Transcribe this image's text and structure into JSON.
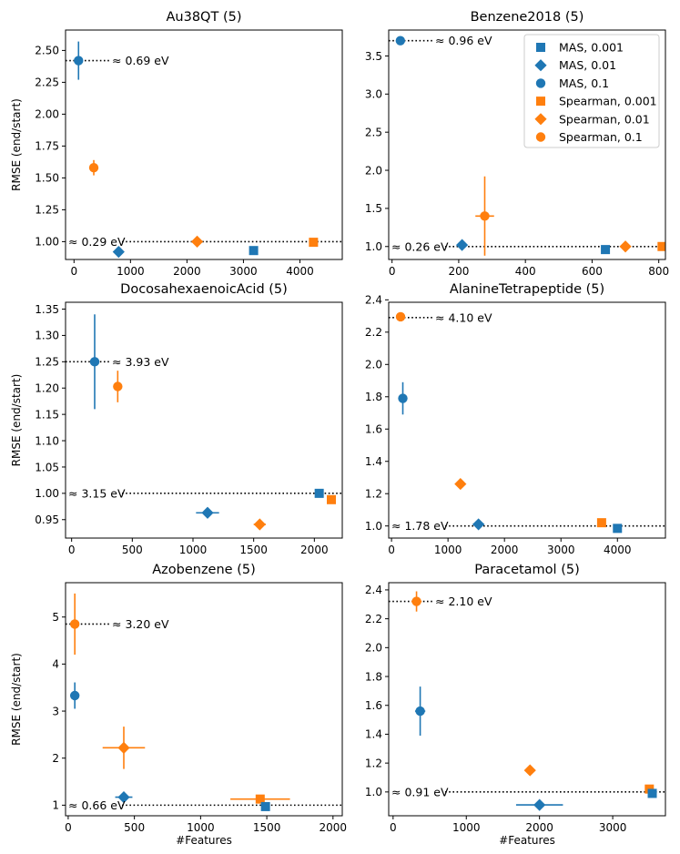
{
  "figure": {
    "shared_xlabel": "#Features",
    "shared_ylabel": "RMSE (end/start)"
  },
  "colors": {
    "MAS": "#1f77b4",
    "Spearman": "#ff7f0e"
  },
  "legend_entries": [
    {
      "label": "MAS, 0.001",
      "method": "MAS",
      "marker": "square"
    },
    {
      "label": "MAS, 0.01",
      "method": "MAS",
      "marker": "diamond"
    },
    {
      "label": "MAS, 0.1",
      "method": "MAS",
      "marker": "circle"
    },
    {
      "label": "Spearman, 0.001",
      "method": "Spearman",
      "marker": "square"
    },
    {
      "label": "Spearman, 0.01",
      "method": "Spearman",
      "marker": "diamond"
    },
    {
      "label": "Spearman, 0.1",
      "method": "Spearman",
      "marker": "circle"
    }
  ],
  "chart_data": [
    {
      "type": "scatter",
      "title": "Au38QT (5)",
      "xlabel": "",
      "ylabel": "RMSE (end/start)",
      "xlim": [
        -150,
        4750
      ],
      "ylim": [
        0.86,
        2.66
      ],
      "xticks": [
        0,
        1000,
        2000,
        3000,
        4000
      ],
      "yticks": [
        1.0,
        1.25,
        1.5,
        1.75,
        2.0,
        2.25,
        2.5
      ],
      "xtick_labels": [
        "0",
        "1000",
        "2000",
        "3000",
        "4000"
      ],
      "ytick_labels": [
        "1.00",
        "1.25",
        "1.50",
        "1.75",
        "2.00",
        "2.25",
        "2.50"
      ],
      "refs": [
        {
          "y": 2.42,
          "label": "≈ 0.69 eV",
          "side": "left"
        },
        {
          "y": 1.0,
          "label": "≈ 0.29 eV",
          "side": "full"
        }
      ],
      "points": [
        {
          "series": "MAS, 0.1",
          "method": "MAS",
          "marker": "circle",
          "x": 80,
          "y": 2.42,
          "yerr": 0.15,
          "xerr": 0
        },
        {
          "series": "MAS, 0.01",
          "method": "MAS",
          "marker": "diamond",
          "x": 790,
          "y": 0.92,
          "yerr": 0,
          "xerr": 0
        },
        {
          "series": "MAS, 0.001",
          "method": "MAS",
          "marker": "square",
          "x": 3180,
          "y": 0.93,
          "yerr": 0,
          "xerr": 0
        },
        {
          "series": "Spearman, 0.1",
          "method": "Spearman",
          "marker": "circle",
          "x": 350,
          "y": 1.58,
          "yerr": 0.06,
          "xerr": 0
        },
        {
          "series": "Spearman, 0.01",
          "method": "Spearman",
          "marker": "diamond",
          "x": 2180,
          "y": 1.0,
          "yerr": 0,
          "xerr": 0
        },
        {
          "series": "Spearman, 0.001",
          "method": "Spearman",
          "marker": "square",
          "x": 4240,
          "y": 0.995,
          "yerr": 0,
          "xerr": 30
        }
      ]
    },
    {
      "type": "scatter",
      "title": "Benzene2018 (5)",
      "xlabel": "",
      "ylabel": "",
      "xlim": [
        -10,
        820
      ],
      "ylim": [
        0.83,
        3.84
      ],
      "xticks": [
        0,
        200,
        400,
        600,
        800
      ],
      "yticks": [
        1.0,
        1.5,
        2.0,
        2.5,
        3.0,
        3.5
      ],
      "xtick_labels": [
        "0",
        "200",
        "400",
        "600",
        "800"
      ],
      "ytick_labels": [
        "1.0",
        "1.5",
        "2.0",
        "2.5",
        "3.0",
        "3.5"
      ],
      "refs": [
        {
          "y": 3.7,
          "label": "≈ 0.96 eV",
          "side": "left"
        },
        {
          "y": 1.0,
          "label": "≈ 0.26 eV",
          "side": "full"
        }
      ],
      "legend": "top-right",
      "points": [
        {
          "series": "MAS, 0.1",
          "method": "MAS",
          "marker": "circle",
          "x": 25,
          "y": 3.7,
          "yerr": 0,
          "xerr": 0
        },
        {
          "series": "MAS, 0.01",
          "method": "MAS",
          "marker": "diamond",
          "x": 210,
          "y": 1.02,
          "yerr": 0,
          "xerr": 0
        },
        {
          "series": "MAS, 0.001",
          "method": "MAS",
          "marker": "square",
          "x": 640,
          "y": 0.96,
          "yerr": 0,
          "xerr": 6
        },
        {
          "series": "Spearman, 0.1",
          "method": "Spearman",
          "marker": "circle",
          "x": 278,
          "y": 1.4,
          "yerr": 0.52,
          "xerr": 28
        },
        {
          "series": "Spearman, 0.01",
          "method": "Spearman",
          "marker": "diamond",
          "x": 700,
          "y": 1.0,
          "yerr": 0,
          "xerr": 0
        },
        {
          "series": "Spearman, 0.001",
          "method": "Spearman",
          "marker": "square",
          "x": 810,
          "y": 1.0,
          "yerr": 0,
          "xerr": 0
        }
      ]
    },
    {
      "type": "scatter",
      "title": "DocosahexaenoicAcid (5)",
      "xlabel": "",
      "ylabel": "RMSE (end/start)",
      "xlim": [
        -50,
        2230
      ],
      "ylim": [
        0.915,
        1.363
      ],
      "xticks": [
        0,
        500,
        1000,
        1500,
        2000
      ],
      "yticks": [
        0.95,
        1.0,
        1.05,
        1.1,
        1.15,
        1.2,
        1.25,
        1.3,
        1.35
      ],
      "xtick_labels": [
        "0",
        "500",
        "1000",
        "1500",
        "2000"
      ],
      "ytick_labels": [
        "0.95",
        "1.00",
        "1.05",
        "1.10",
        "1.15",
        "1.20",
        "1.25",
        "1.30",
        "1.35"
      ],
      "refs": [
        {
          "y": 1.25,
          "label": "≈ 3.93 eV",
          "side": "left"
        },
        {
          "y": 1.0,
          "label": "≈ 3.15 eV",
          "side": "full"
        }
      ],
      "points": [
        {
          "series": "MAS, 0.1",
          "method": "MAS",
          "marker": "circle",
          "x": 190,
          "y": 1.25,
          "yerr": 0.09,
          "xerr": 0
        },
        {
          "series": "MAS, 0.01",
          "method": "MAS",
          "marker": "diamond",
          "x": 1120,
          "y": 0.963,
          "yerr": 0,
          "xerr": 95
        },
        {
          "series": "MAS, 0.001",
          "method": "MAS",
          "marker": "square",
          "x": 2040,
          "y": 1.0,
          "yerr": 0,
          "xerr": 25
        },
        {
          "series": "Spearman, 0.1",
          "method": "Spearman",
          "marker": "circle",
          "x": 380,
          "y": 1.203,
          "yerr": 0.03,
          "xerr": 0
        },
        {
          "series": "Spearman, 0.01",
          "method": "Spearman",
          "marker": "diamond",
          "x": 1550,
          "y": 0.941,
          "yerr": 0,
          "xerr": 50
        },
        {
          "series": "Spearman, 0.001",
          "method": "Spearman",
          "marker": "square",
          "x": 2140,
          "y": 0.988,
          "yerr": 0,
          "xerr": 0
        }
      ]
    },
    {
      "type": "scatter",
      "title": "AlanineTetrapeptide (5)",
      "xlabel": "",
      "ylabel": "",
      "xlim": [
        -50,
        4850
      ],
      "ylim": [
        0.925,
        2.385
      ],
      "xticks": [
        0,
        1000,
        2000,
        3000,
        4000
      ],
      "yticks": [
        1.0,
        1.2,
        1.4,
        1.6,
        1.8,
        2.0,
        2.2,
        2.4
      ],
      "xtick_labels": [
        "0",
        "1000",
        "2000",
        "3000",
        "4000"
      ],
      "ytick_labels": [
        "1.0",
        "1.2",
        "1.4",
        "1.6",
        "1.8",
        "2.0",
        "2.2",
        "2.4"
      ],
      "refs": [
        {
          "y": 2.29,
          "label": "≈ 4.10 eV",
          "side": "left"
        },
        {
          "y": 1.0,
          "label": "≈ 1.78 eV",
          "side": "full"
        }
      ],
      "points": [
        {
          "series": "Spearman, 0.1",
          "method": "Spearman",
          "marker": "circle",
          "x": 160,
          "y": 2.295,
          "yerr": 0,
          "xerr": 0
        },
        {
          "series": "MAS, 0.1",
          "method": "MAS",
          "marker": "circle",
          "x": 200,
          "y": 1.79,
          "yerr": 0.1,
          "xerr": 0
        },
        {
          "series": "Spearman, 0.01",
          "method": "Spearman",
          "marker": "diamond",
          "x": 1220,
          "y": 1.26,
          "yerr": 0,
          "xerr": 0
        },
        {
          "series": "MAS, 0.01",
          "method": "MAS",
          "marker": "diamond",
          "x": 1540,
          "y": 1.01,
          "yerr": 0,
          "xerr": 100
        },
        {
          "series": "Spearman, 0.001",
          "method": "Spearman",
          "marker": "square",
          "x": 3720,
          "y": 1.02,
          "yerr": 0,
          "xerr": 0
        },
        {
          "series": "MAS, 0.001",
          "method": "MAS",
          "marker": "square",
          "x": 4000,
          "y": 0.985,
          "yerr": 0,
          "xerr": 60
        }
      ]
    },
    {
      "type": "scatter",
      "title": "Azobenzene (5)",
      "xlabel": "#Features",
      "ylabel": "RMSE (end/start)",
      "xlim": [
        -20,
        2070
      ],
      "ylim": [
        0.775,
        5.73
      ],
      "xticks": [
        0,
        500,
        1000,
        1500,
        2000
      ],
      "yticks": [
        1,
        2,
        3,
        4,
        5
      ],
      "xtick_labels": [
        "0",
        "500",
        "1000",
        "1500",
        "2000"
      ],
      "ytick_labels": [
        "1",
        "2",
        "3",
        "4",
        "5"
      ],
      "refs": [
        {
          "y": 4.85,
          "label": "≈ 3.20 eV",
          "side": "left"
        },
        {
          "y": 1.0,
          "label": "≈ 0.66 eV",
          "side": "full"
        }
      ],
      "points": [
        {
          "series": "Spearman, 0.1",
          "method": "Spearman",
          "marker": "circle",
          "x": 50,
          "y": 4.85,
          "yerr": 0.65,
          "xerr": 20
        },
        {
          "series": "MAS, 0.1",
          "method": "MAS",
          "marker": "circle",
          "x": 50,
          "y": 3.33,
          "yerr": 0.28,
          "xerr": 0
        },
        {
          "series": "Spearman, 0.01",
          "method": "Spearman",
          "marker": "diamond",
          "x": 420,
          "y": 2.22,
          "yerr": 0.45,
          "xerr": 160
        },
        {
          "series": "MAS, 0.01",
          "method": "MAS",
          "marker": "diamond",
          "x": 420,
          "y": 1.17,
          "yerr": 0,
          "xerr": 65
        },
        {
          "series": "Spearman, 0.001",
          "method": "Spearman",
          "marker": "square",
          "x": 1450,
          "y": 1.13,
          "yerr": 0.08,
          "xerr": 225
        },
        {
          "series": "MAS, 0.001",
          "method": "MAS",
          "marker": "square",
          "x": 1490,
          "y": 0.97,
          "yerr": 0,
          "xerr": 30
        }
      ]
    },
    {
      "type": "scatter",
      "title": "Paracetamol (5)",
      "xlabel": "#Features",
      "ylabel": "",
      "xlim": [
        -60,
        3720
      ],
      "ylim": [
        0.835,
        2.45
      ],
      "xticks": [
        0,
        1000,
        2000,
        3000
      ],
      "yticks": [
        1.0,
        1.2,
        1.4,
        1.6,
        1.8,
        2.0,
        2.2,
        2.4
      ],
      "xtick_labels": [
        "0",
        "1000",
        "2000",
        "3000"
      ],
      "ytick_labels": [
        "1.0",
        "1.2",
        "1.4",
        "1.6",
        "1.8",
        "2.0",
        "2.2",
        "2.4"
      ],
      "refs": [
        {
          "y": 2.32,
          "label": "≈ 2.10 eV",
          "side": "left"
        },
        {
          "y": 1.0,
          "label": "≈ 0.91 eV",
          "side": "full"
        }
      ],
      "points": [
        {
          "series": "Spearman, 0.1",
          "method": "Spearman",
          "marker": "circle",
          "x": 320,
          "y": 2.32,
          "yerr": 0.07,
          "xerr": 70
        },
        {
          "series": "MAS, 0.1",
          "method": "MAS",
          "marker": "circle",
          "x": 370,
          "y": 1.56,
          "yerr": 0.17,
          "xerr": 70
        },
        {
          "series": "Spearman, 0.01",
          "method": "Spearman",
          "marker": "diamond",
          "x": 1870,
          "y": 1.15,
          "yerr": 0,
          "xerr": 0
        },
        {
          "series": "MAS, 0.01",
          "method": "MAS",
          "marker": "diamond",
          "x": 2000,
          "y": 0.91,
          "yerr": 0,
          "xerr": 320
        },
        {
          "series": "Spearman, 0.001",
          "method": "Spearman",
          "marker": "square",
          "x": 3500,
          "y": 1.02,
          "yerr": 0,
          "xerr": 0
        },
        {
          "series": "MAS, 0.001",
          "method": "MAS",
          "marker": "square",
          "x": 3540,
          "y": 0.99,
          "yerr": 0,
          "xerr": 0
        }
      ]
    }
  ]
}
